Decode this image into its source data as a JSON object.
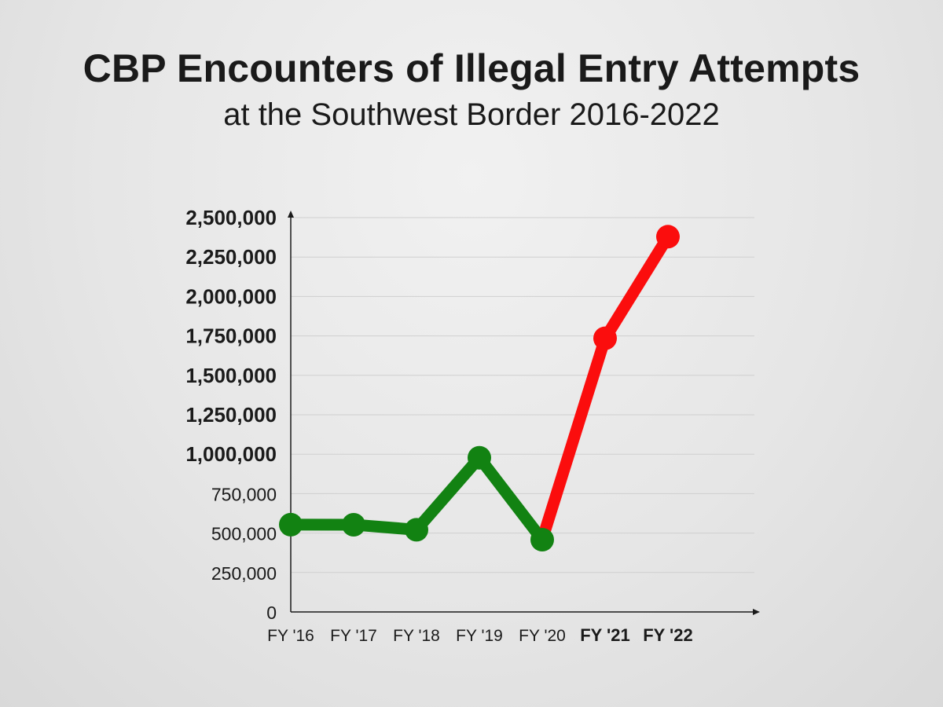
{
  "chart_data": {
    "type": "line",
    "title": "CBP Encounters of Illegal Entry Attempts",
    "subtitle": "at the Southwest Border 2016-2022",
    "xlabel": "",
    "ylabel": "",
    "categories": [
      "FY '16",
      "FY '17",
      "FY '18",
      "FY '19",
      "FY '20",
      "FY '21",
      "FY '22"
    ],
    "values": [
      553378,
      553000,
      521090,
      977509,
      458088,
      1734686,
      2378944
    ],
    "category_label_bold": [
      false,
      false,
      false,
      false,
      false,
      true,
      true
    ],
    "segment_colors": [
      "green",
      "green",
      "green",
      "green",
      "red",
      "red"
    ],
    "colors": {
      "green": "#128212",
      "red": "#fb0d0d",
      "gridline": "#cfcfcf",
      "axis": "#1a1a1a"
    },
    "ylim": [
      0,
      2500000
    ],
    "yticks": [
      {
        "value": 0,
        "label": "0",
        "bold": false
      },
      {
        "value": 250000,
        "label": "250,000",
        "bold": false
      },
      {
        "value": 500000,
        "label": "500,000",
        "bold": false
      },
      {
        "value": 750000,
        "label": "750,000",
        "bold": false
      },
      {
        "value": 1000000,
        "label": "1,000,000",
        "bold": true
      },
      {
        "value": 1250000,
        "label": "1,250,000",
        "bold": true
      },
      {
        "value": 1500000,
        "label": "1,500,000",
        "bold": true
      },
      {
        "value": 1750000,
        "label": "1,750,000",
        "bold": true
      },
      {
        "value": 2000000,
        "label": "2,000,000",
        "bold": true
      },
      {
        "value": 2250000,
        "label": "2,250,000",
        "bold": true
      },
      {
        "value": 2500000,
        "label": "2,500,000",
        "bold": true
      }
    ],
    "grid": true,
    "legend": "none"
  }
}
